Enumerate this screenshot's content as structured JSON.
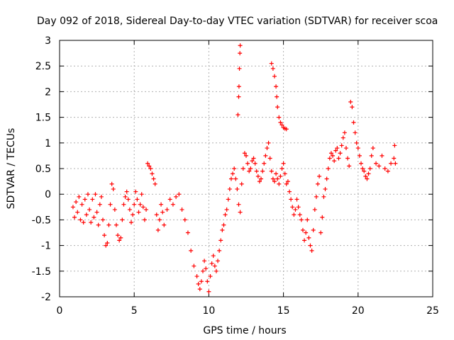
{
  "chart_data": {
    "type": "scatter",
    "title": "Day 092 of 2018, Sidereal Day-to-day VTEC variation (SDTVAR) for receiver scoa",
    "xlabel": "GPS time / hours",
    "ylabel": "SDTVAR / TECUs",
    "xlim": [
      0,
      25
    ],
    "ylim": [
      -2,
      3
    ],
    "x_ticks": [
      "0",
      "5",
      "10",
      "15",
      "20",
      "25"
    ],
    "y_ticks": [
      "-2",
      "-1.5",
      "-1",
      "-0.5",
      "0",
      "0.5",
      "1",
      "1.5",
      "2",
      "2.5",
      "3"
    ],
    "grid": true,
    "marker": "+",
    "color": "#ff0000",
    "series": [
      {
        "points": [
          [
            0.9,
            -0.25
          ],
          [
            1.0,
            -0.45
          ],
          [
            1.1,
            -0.15
          ],
          [
            1.2,
            -0.35
          ],
          [
            1.3,
            -0.05
          ],
          [
            1.4,
            -0.5
          ],
          [
            1.5,
            -0.2
          ],
          [
            1.6,
            -0.55
          ],
          [
            1.7,
            -0.1
          ],
          [
            1.8,
            -0.4
          ],
          [
            1.9,
            0.0
          ],
          [
            2.0,
            -0.3
          ],
          [
            2.1,
            -0.55
          ],
          [
            2.2,
            -0.1
          ],
          [
            2.3,
            -0.45
          ],
          [
            2.4,
            0.0
          ],
          [
            2.5,
            -0.35
          ],
          [
            2.6,
            -0.6
          ],
          [
            2.7,
            -0.2
          ],
          [
            2.8,
            -0.05
          ],
          [
            2.9,
            -0.5
          ],
          [
            3.0,
            -0.8
          ],
          [
            3.1,
            -1.0
          ],
          [
            3.2,
            -0.95
          ],
          [
            3.3,
            -0.6
          ],
          [
            3.4,
            -0.2
          ],
          [
            3.5,
            0.2
          ],
          [
            3.6,
            0.1
          ],
          [
            3.7,
            -0.3
          ],
          [
            3.8,
            -0.6
          ],
          [
            3.9,
            -0.8
          ],
          [
            4.0,
            -0.9
          ],
          [
            4.1,
            -0.85
          ],
          [
            4.2,
            -0.5
          ],
          [
            4.3,
            -0.2
          ],
          [
            4.4,
            -0.05
          ],
          [
            4.5,
            0.05
          ],
          [
            4.6,
            -0.1
          ],
          [
            4.7,
            -0.3
          ],
          [
            4.8,
            -0.55
          ],
          [
            4.9,
            -0.4
          ],
          [
            5.0,
            -0.2
          ],
          [
            5.1,
            0.05
          ],
          [
            5.2,
            -0.1
          ],
          [
            5.3,
            -0.35
          ],
          [
            5.4,
            -0.2
          ],
          [
            5.5,
            0.0
          ],
          [
            5.6,
            -0.25
          ],
          [
            5.7,
            -0.5
          ],
          [
            5.8,
            -0.3
          ],
          [
            5.9,
            0.6
          ],
          [
            6.0,
            0.55
          ],
          [
            6.1,
            0.5
          ],
          [
            6.2,
            0.4
          ],
          [
            6.3,
            0.3
          ],
          [
            6.4,
            0.2
          ],
          [
            6.5,
            -0.4
          ],
          [
            6.6,
            -0.7
          ],
          [
            6.7,
            -0.5
          ],
          [
            6.8,
            -0.2
          ],
          [
            6.9,
            -0.35
          ],
          [
            7.0,
            -0.6
          ],
          [
            7.2,
            -0.3
          ],
          [
            7.4,
            -0.1
          ],
          [
            7.6,
            -0.2
          ],
          [
            7.8,
            -0.05
          ],
          [
            8.0,
            0.0
          ],
          [
            8.2,
            -0.3
          ],
          [
            8.4,
            -0.5
          ],
          [
            8.6,
            -0.75
          ],
          [
            8.8,
            -1.1
          ],
          [
            9.0,
            -1.4
          ],
          [
            9.2,
            -1.6
          ],
          [
            9.3,
            -1.75
          ],
          [
            9.4,
            -1.85
          ],
          [
            9.5,
            -1.7
          ],
          [
            9.6,
            -1.5
          ],
          [
            9.7,
            -1.3
          ],
          [
            9.8,
            -1.45
          ],
          [
            9.9,
            -1.7
          ],
          [
            10.0,
            -1.9
          ],
          [
            10.1,
            -1.6
          ],
          [
            10.2,
            -1.35
          ],
          [
            10.3,
            -1.2
          ],
          [
            10.4,
            -1.4
          ],
          [
            10.5,
            -1.5
          ],
          [
            10.6,
            -1.3
          ],
          [
            10.7,
            -1.1
          ],
          [
            10.8,
            -0.9
          ],
          [
            10.9,
            -0.7
          ],
          [
            11.0,
            -0.6
          ],
          [
            11.1,
            -0.4
          ],
          [
            11.2,
            -0.3
          ],
          [
            11.3,
            -0.1
          ],
          [
            11.4,
            0.1
          ],
          [
            11.5,
            0.3
          ],
          [
            11.6,
            0.4
          ],
          [
            11.7,
            0.5
          ],
          [
            11.8,
            0.3
          ],
          [
            11.9,
            0.1
          ],
          [
            12.0,
            -0.2
          ],
          [
            12.1,
            -0.35
          ],
          [
            12.2,
            0.2
          ],
          [
            12.3,
            0.5
          ],
          [
            12.4,
            0.8
          ],
          [
            12.5,
            0.75
          ],
          [
            12.6,
            0.6
          ],
          [
            12.7,
            0.45
          ],
          [
            12.8,
            0.5
          ],
          [
            12.9,
            0.65
          ],
          [
            13.0,
            0.7
          ],
          [
            13.1,
            0.6
          ],
          [
            13.2,
            0.45
          ],
          [
            13.3,
            0.35
          ],
          [
            13.4,
            0.25
          ],
          [
            13.5,
            0.3
          ],
          [
            13.6,
            0.45
          ],
          [
            13.7,
            0.6
          ],
          [
            13.8,
            0.75
          ],
          [
            13.9,
            0.9
          ],
          [
            14.0,
            1.0
          ],
          [
            14.1,
            0.7
          ],
          [
            14.2,
            0.45
          ],
          [
            14.3,
            0.3
          ],
          [
            14.4,
            0.25
          ],
          [
            14.5,
            0.4
          ],
          [
            14.6,
            0.3
          ],
          [
            14.7,
            0.2
          ],
          [
            14.8,
            0.35
          ],
          [
            14.9,
            0.5
          ],
          [
            15.0,
            0.6
          ],
          [
            15.1,
            0.4
          ],
          [
            15.2,
            0.2
          ],
          [
            15.3,
            0.25
          ],
          [
            15.4,
            0.05
          ],
          [
            15.5,
            -0.1
          ],
          [
            15.6,
            -0.25
          ],
          [
            15.7,
            -0.4
          ],
          [
            15.8,
            -0.3
          ],
          [
            15.9,
            -0.1
          ],
          [
            16.0,
            -0.25
          ],
          [
            16.1,
            -0.4
          ],
          [
            16.2,
            -0.5
          ],
          [
            16.3,
            -0.7
          ],
          [
            16.4,
            -0.9
          ],
          [
            16.5,
            -0.75
          ],
          [
            16.6,
            -0.5
          ],
          [
            16.7,
            -0.85
          ],
          [
            16.8,
            -1.0
          ],
          [
            16.9,
            -1.1
          ],
          [
            17.0,
            -0.7
          ],
          [
            17.1,
            -0.3
          ],
          [
            17.2,
            -0.05
          ],
          [
            17.3,
            0.2
          ],
          [
            17.4,
            0.35
          ],
          [
            17.5,
            -0.75
          ],
          [
            17.6,
            -0.45
          ],
          [
            17.7,
            -0.05
          ],
          [
            17.8,
            0.1
          ],
          [
            17.9,
            0.3
          ],
          [
            18.0,
            0.5
          ],
          [
            18.1,
            0.7
          ],
          [
            18.2,
            0.8
          ],
          [
            18.3,
            0.75
          ],
          [
            18.4,
            0.65
          ],
          [
            18.5,
            0.85
          ],
          [
            18.6,
            0.9
          ],
          [
            18.7,
            0.7
          ],
          [
            18.8,
            0.8
          ],
          [
            18.9,
            0.95
          ],
          [
            19.0,
            1.1
          ],
          [
            19.1,
            1.2
          ],
          [
            19.2,
            0.9
          ],
          [
            19.3,
            0.7
          ],
          [
            19.4,
            0.55
          ],
          [
            19.5,
            1.8
          ],
          [
            19.6,
            1.7
          ],
          [
            19.7,
            1.4
          ],
          [
            19.8,
            1.2
          ],
          [
            19.9,
            1.0
          ],
          [
            20.0,
            0.9
          ],
          [
            20.1,
            0.75
          ],
          [
            20.2,
            0.6
          ],
          [
            20.3,
            0.5
          ],
          [
            20.4,
            0.45
          ],
          [
            20.5,
            0.35
          ],
          [
            20.6,
            0.3
          ],
          [
            20.7,
            0.4
          ],
          [
            20.8,
            0.5
          ],
          [
            20.9,
            0.75
          ],
          [
            21.0,
            0.9
          ],
          [
            21.2,
            0.6
          ],
          [
            21.4,
            0.55
          ],
          [
            21.6,
            0.75
          ],
          [
            21.8,
            0.5
          ],
          [
            22.0,
            0.45
          ],
          [
            22.2,
            0.6
          ],
          [
            22.4,
            0.7
          ],
          [
            22.5,
            0.6
          ],
          [
            22.45,
            0.95
          ],
          [
            11.95,
            1.55
          ],
          [
            12.0,
            1.9
          ],
          [
            12.02,
            2.1
          ],
          [
            12.05,
            2.45
          ],
          [
            12.08,
            2.75
          ],
          [
            12.1,
            2.9
          ],
          [
            14.2,
            2.55
          ],
          [
            14.3,
            2.45
          ],
          [
            14.4,
            2.3
          ],
          [
            14.5,
            2.1
          ],
          [
            14.55,
            1.9
          ],
          [
            14.6,
            1.7
          ],
          [
            14.7,
            1.5
          ],
          [
            14.8,
            1.4
          ],
          [
            14.9,
            1.35
          ],
          [
            15.0,
            1.3
          ],
          [
            15.1,
            1.28
          ],
          [
            15.2,
            1.27
          ]
        ]
      }
    ]
  }
}
